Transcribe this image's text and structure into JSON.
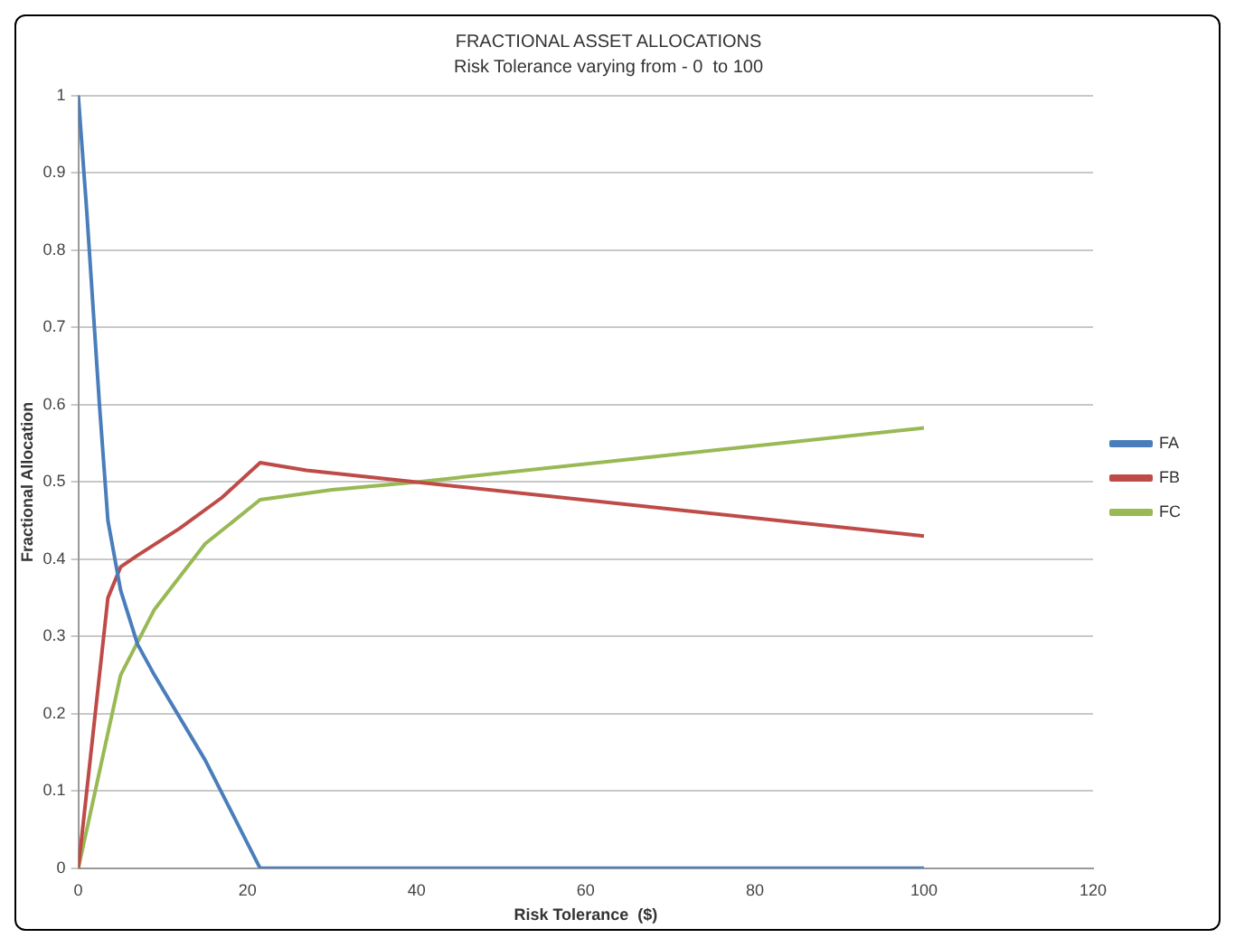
{
  "chart_data": {
    "type": "line",
    "title": "FRACTIONAL ASSET ALLOCATIONS",
    "subtitle": "Risk Tolerance varying from - 0  to 100",
    "xlabel": "Risk Tolerance  ($)",
    "ylabel": "Fractional Allocation",
    "xlim": [
      0,
      120
    ],
    "xticks": [
      0,
      20,
      40,
      60,
      80,
      100,
      120
    ],
    "ylim": [
      0,
      1
    ],
    "yticks": [
      0,
      0.1,
      0.2,
      0.3,
      0.4,
      0.5,
      0.6,
      0.7,
      0.8,
      0.9,
      1
    ],
    "grid": "y",
    "legend": "right",
    "marker": "none",
    "series": [
      {
        "name": "FA",
        "color": "#4a7ebb",
        "x": [
          0,
          1,
          2.5,
          3.5,
          5,
          7,
          9,
          15,
          21.5,
          100
        ],
        "values": [
          1,
          0.85,
          0.6,
          0.45,
          0.36,
          0.29,
          0.25,
          0.14,
          0,
          0
        ]
      },
      {
        "name": "FB",
        "color": "#be4b48",
        "x": [
          0,
          3.5,
          5,
          7,
          12,
          17,
          21.5,
          27,
          40,
          100
        ],
        "values": [
          0,
          0.35,
          0.39,
          0.405,
          0.44,
          0.48,
          0.525,
          0.515,
          0.5,
          0.43
        ]
      },
      {
        "name": "FC",
        "color": "#98b954",
        "x": [
          0,
          5,
          9,
          15,
          21.5,
          30,
          40,
          100
        ],
        "values": [
          0,
          0.25,
          0.335,
          0.42,
          0.477,
          0.49,
          0.5,
          0.57
        ]
      }
    ]
  }
}
